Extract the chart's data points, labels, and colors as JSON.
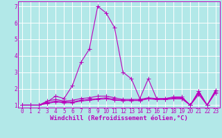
{
  "title": "",
  "xlabel": "Windchill (Refroidissement éolien,°C)",
  "ylabel": "",
  "background_color": "#b2e8e8",
  "line_color": "#bb00bb",
  "grid_color": "#ffffff",
  "x_values": [
    0,
    1,
    2,
    3,
    4,
    5,
    6,
    7,
    8,
    9,
    10,
    11,
    12,
    13,
    14,
    15,
    16,
    17,
    18,
    19,
    20,
    21,
    22,
    23
  ],
  "series": [
    [
      1.0,
      1.0,
      1.0,
      1.2,
      1.55,
      1.4,
      2.2,
      3.6,
      4.4,
      7.0,
      6.6,
      5.7,
      3.0,
      2.6,
      1.4,
      2.6,
      1.4,
      1.4,
      1.5,
      1.5,
      1.0,
      1.85,
      1.0,
      1.9
    ],
    [
      1.0,
      1.0,
      1.0,
      1.25,
      1.35,
      1.25,
      1.3,
      1.4,
      1.45,
      1.55,
      1.55,
      1.45,
      1.35,
      1.35,
      1.35,
      1.45,
      1.4,
      1.4,
      1.45,
      1.45,
      1.0,
      1.85,
      1.0,
      1.9
    ],
    [
      1.0,
      1.0,
      1.0,
      1.15,
      1.25,
      1.2,
      1.2,
      1.3,
      1.35,
      1.4,
      1.45,
      1.35,
      1.3,
      1.3,
      1.3,
      1.4,
      1.35,
      1.35,
      1.4,
      1.4,
      1.0,
      1.75,
      1.0,
      1.82
    ],
    [
      1.0,
      1.0,
      1.0,
      1.1,
      1.2,
      1.15,
      1.15,
      1.25,
      1.3,
      1.35,
      1.38,
      1.3,
      1.28,
      1.28,
      1.28,
      1.38,
      1.35,
      1.35,
      1.38,
      1.38,
      1.0,
      1.65,
      1.0,
      1.75
    ]
  ],
  "ylim": [
    0.85,
    7.3
  ],
  "xlim": [
    -0.5,
    23.5
  ],
  "yticks": [
    1,
    2,
    3,
    4,
    5,
    6,
    7
  ],
  "xticks": [
    0,
    1,
    2,
    3,
    4,
    5,
    6,
    7,
    8,
    9,
    10,
    11,
    12,
    13,
    14,
    15,
    16,
    17,
    18,
    19,
    20,
    21,
    22,
    23
  ],
  "marker": "+",
  "markersize": 4,
  "linewidth": 0.8,
  "xlabel_fontsize": 6.5,
  "tick_fontsize": 5.5
}
